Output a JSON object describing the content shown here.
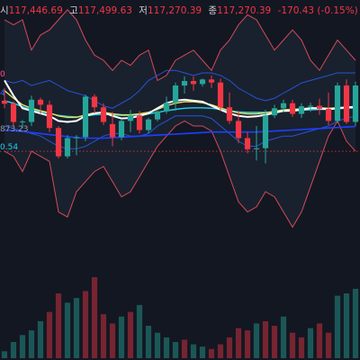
{
  "legend": {
    "open_label": "시",
    "open_value": "117,446.69",
    "high_label": "고",
    "high_value": "117,499.63",
    "low_label": "저",
    "low_value": "117,270.39",
    "close_label": "종",
    "close_value": "117,270.39",
    "change": "-170.43 (-0.15%)"
  },
  "price_labels": [
    {
      "text": "0",
      "color": "#ff4fa3"
    },
    {
      "text": "4",
      "color": "#2962ff"
    },
    {
      "text": "873.23",
      "color": "#9598a1"
    },
    {
      "text": "0.54",
      "color": "#22d3ee"
    }
  ],
  "colors": {
    "up": "#26a69a",
    "down": "#f23645",
    "background": "#131722",
    "bb_outer": "#f7525f",
    "bb_mid": "#2962ff",
    "ma_white": "#ffffff",
    "ma_yellow": "#e5e05a",
    "ma_cyan": "#22d3ee",
    "ma_blue": "#1e40ff",
    "dotted_line": "#f23645"
  },
  "chart_data": {
    "type": "candlestick",
    "candles": [
      {
        "o": 117520,
        "h": 117545,
        "l": 117505,
        "c": 117514
      },
      {
        "o": 117514,
        "h": 117518,
        "l": 117470,
        "c": 117478
      },
      {
        "o": 117478,
        "h": 117482,
        "l": 117466,
        "c": 117479
      },
      {
        "o": 117478,
        "h": 117530,
        "l": 117470,
        "c": 117522
      },
      {
        "o": 117522,
        "h": 117526,
        "l": 117494,
        "c": 117512
      },
      {
        "o": 117512,
        "h": 117520,
        "l": 117458,
        "c": 117466
      },
      {
        "o": 117466,
        "h": 117470,
        "l": 117406,
        "c": 117410
      },
      {
        "o": 117410,
        "h": 117452,
        "l": 117406,
        "c": 117446
      },
      {
        "o": 117446,
        "h": 117452,
        "l": 117412,
        "c": 117448
      },
      {
        "o": 117448,
        "h": 117532,
        "l": 117440,
        "c": 117528
      },
      {
        "o": 117528,
        "h": 117533,
        "l": 117495,
        "c": 117507
      },
      {
        "o": 117507,
        "h": 117515,
        "l": 117472,
        "c": 117478
      },
      {
        "o": 117474,
        "h": 117498,
        "l": 117430,
        "c": 117448
      },
      {
        "o": 117448,
        "h": 117484,
        "l": 117442,
        "c": 117480
      },
      {
        "o": 117480,
        "h": 117502,
        "l": 117458,
        "c": 117491
      },
      {
        "o": 117491,
        "h": 117500,
        "l": 117455,
        "c": 117462
      },
      {
        "o": 117462,
        "h": 117486,
        "l": 117456,
        "c": 117483
      },
      {
        "o": 117483,
        "h": 117500,
        "l": 117479,
        "c": 117499
      },
      {
        "o": 117499,
        "h": 117528,
        "l": 117494,
        "c": 117516
      },
      {
        "o": 117516,
        "h": 117556,
        "l": 117500,
        "c": 117550
      },
      {
        "o": 117550,
        "h": 117568,
        "l": 117534,
        "c": 117559
      },
      {
        "o": 117559,
        "h": 117568,
        "l": 117540,
        "c": 117553
      },
      {
        "o": 117553,
        "h": 117564,
        "l": 117548,
        "c": 117562
      },
      {
        "o": 117562,
        "h": 117570,
        "l": 117545,
        "c": 117556
      },
      {
        "o": 117556,
        "h": 117564,
        "l": 117500,
        "c": 117507
      },
      {
        "o": 117507,
        "h": 117536,
        "l": 117474,
        "c": 117480
      },
      {
        "o": 117480,
        "h": 117500,
        "l": 117436,
        "c": 117446
      },
      {
        "o": 117446,
        "h": 117458,
        "l": 117416,
        "c": 117424
      },
      {
        "o": 117424,
        "h": 117470,
        "l": 117402,
        "c": 117426
      },
      {
        "o": 117426,
        "h": 117502,
        "l": 117396,
        "c": 117491
      },
      {
        "o": 117491,
        "h": 117512,
        "l": 117486,
        "c": 117505
      },
      {
        "o": 117505,
        "h": 117522,
        "l": 117498,
        "c": 117515
      },
      {
        "o": 117515,
        "h": 117522,
        "l": 117488,
        "c": 117494
      },
      {
        "o": 117494,
        "h": 117515,
        "l": 117486,
        "c": 117509
      },
      {
        "o": 117509,
        "h": 117516,
        "l": 117498,
        "c": 117510
      },
      {
        "o": 117510,
        "h": 117524,
        "l": 117492,
        "c": 117504
      },
      {
        "o": 117504,
        "h": 117536,
        "l": 117472,
        "c": 117480
      },
      {
        "o": 117480,
        "h": 117556,
        "l": 117476,
        "c": 117550
      },
      {
        "o": 117550,
        "h": 117562,
        "l": 117474,
        "c": 117478
      },
      {
        "o": 117478,
        "h": 117558,
        "l": 117470,
        "c": 117550
      }
    ],
    "volume": [
      {
        "v": 6,
        "up": true
      },
      {
        "v": 14,
        "up": true
      },
      {
        "v": 20,
        "up": true
      },
      {
        "v": 24,
        "up": true
      },
      {
        "v": 32,
        "up": true
      },
      {
        "v": 40,
        "up": false
      },
      {
        "v": 56,
        "up": false
      },
      {
        "v": 48,
        "up": true
      },
      {
        "v": 52,
        "up": true
      },
      {
        "v": 58,
        "up": false
      },
      {
        "v": 70,
        "up": false
      },
      {
        "v": 38,
        "up": false
      },
      {
        "v": 30,
        "up": false
      },
      {
        "v": 36,
        "up": true
      },
      {
        "v": 40,
        "up": false
      },
      {
        "v": 46,
        "up": true
      },
      {
        "v": 28,
        "up": true
      },
      {
        "v": 22,
        "up": true
      },
      {
        "v": 18,
        "up": true
      },
      {
        "v": 14,
        "up": true
      },
      {
        "v": 16,
        "up": false
      },
      {
        "v": 12,
        "up": true
      },
      {
        "v": 10,
        "up": true
      },
      {
        "v": 8,
        "up": false
      },
      {
        "v": 12,
        "up": false
      },
      {
        "v": 18,
        "up": false
      },
      {
        "v": 26,
        "up": false
      },
      {
        "v": 24,
        "up": false
      },
      {
        "v": 30,
        "up": true
      },
      {
        "v": 32,
        "up": false
      },
      {
        "v": 28,
        "up": false
      },
      {
        "v": 36,
        "up": true
      },
      {
        "v": 22,
        "up": false
      },
      {
        "v": 18,
        "up": false
      },
      {
        "v": 26,
        "up": true
      },
      {
        "v": 30,
        "up": false
      },
      {
        "v": 22,
        "up": false
      },
      {
        "v": 54,
        "up": true
      },
      {
        "v": 56,
        "up": true
      },
      {
        "v": 60,
        "up": true
      }
    ],
    "y_range": [
      117260,
      117680
    ],
    "dotted_level": 117420,
    "bands": {
      "outer_upper": [
        117680,
        117670,
        117680,
        117620,
        117650,
        117660,
        117680,
        117700,
        117680,
        117640,
        117610,
        117600,
        117580,
        117600,
        117590,
        117610,
        117620,
        117560,
        117570,
        117600,
        117610,
        117620,
        117600,
        117580,
        117620,
        117640,
        117670,
        117690,
        117680,
        117650,
        117620,
        117640,
        117660,
        117640,
        117600,
        117580,
        117610,
        117640,
        117620,
        117600
      ],
      "outer_lower": [
        117420,
        117410,
        117380,
        117420,
        117410,
        117400,
        117300,
        117290,
        117340,
        117360,
        117380,
        117390,
        117360,
        117330,
        117340,
        117370,
        117400,
        117430,
        117450,
        117470,
        117480,
        117470,
        117470,
        117460,
        117420,
        117370,
        117320,
        117300,
        117310,
        117340,
        117330,
        117300,
        117270,
        117300,
        117350,
        117400,
        117450,
        117480,
        117440,
        117420
      ],
      "mid_upper": [
        117560,
        117555,
        117560,
        117550,
        117555,
        117560,
        117550,
        117540,
        117535,
        117530,
        117520,
        117510,
        117505,
        117515,
        117525,
        117540,
        117560,
        117570,
        117580,
        117580,
        117575,
        117570,
        117575,
        117575,
        117570,
        117560,
        117545,
        117535,
        117525,
        117520,
        117525,
        117535,
        117545,
        117555,
        117560,
        117565,
        117570,
        117575,
        117575,
        117575
      ],
      "mid_lower": [
        117470,
        117465,
        117460,
        117455,
        117450,
        117440,
        117430,
        117425,
        117425,
        117430,
        117440,
        117450,
        117455,
        117455,
        117450,
        117450,
        117455,
        117470,
        117480,
        117490,
        117490,
        117490,
        117490,
        117485,
        117470,
        117455,
        117440,
        117430,
        117430,
        117440,
        117445,
        117450,
        117450,
        117455,
        117460,
        117465,
        117470,
        117480,
        117485,
        117490
      ]
    },
    "ma_white": [
      117560,
      117530,
      117505,
      117500,
      117495,
      117490,
      117480,
      117478,
      117480,
      117490,
      117495,
      117497,
      117490,
      117485,
      117486,
      117490,
      117495,
      117505,
      117515,
      117520,
      117522,
      117520,
      117518,
      117510,
      117502,
      117495,
      117490,
      117488,
      117489,
      117492,
      117496,
      117500,
      117500,
      117502,
      117505,
      117505,
      117503,
      117505,
      117507,
      117508
    ],
    "ma_yellow": [
      117540,
      117525,
      117512,
      117505,
      117500,
      117496,
      117490,
      117487,
      117487,
      117492,
      117496,
      117497,
      117494,
      117492,
      117492,
      117494,
      117497,
      117503,
      117510,
      117515,
      117518,
      117518,
      117516,
      117512,
      117506,
      117500,
      117496,
      117494,
      117494,
      117496,
      117499,
      117502,
      117503,
      117504,
      117506,
      117506,
      117505,
      117506,
      117507,
      117508
    ],
    "ma_cyan": [
      117520,
      117515,
      117508,
      117502,
      117498,
      117495,
      117491,
      117489,
      117488,
      117490,
      117492,
      117493,
      117492,
      117491,
      117491,
      117492,
      117494,
      117497,
      117500,
      117503,
      117505,
      117506,
      117506,
      117505,
      117503,
      117500,
      117498,
      117497,
      117497,
      117497,
      117498,
      117499,
      117500,
      117501,
      117502,
      117503,
      117503,
      117504,
      117505,
      117505
    ],
    "ma_blue": [
      117462,
      117461,
      117459,
      117457,
      117455,
      117453,
      117451,
      117449,
      117447,
      117446,
      117446,
      117446,
      117447,
      117448,
      117449,
      117450,
      117451,
      117452,
      117453,
      117454,
      117455,
      117456,
      117457,
      117458,
      117458,
      117458,
      117458,
      117458,
      117458,
      117459,
      117460,
      117461,
      117462,
      117463,
      117464,
      117465,
      117466,
      117467,
      117468,
      117469
    ]
  }
}
